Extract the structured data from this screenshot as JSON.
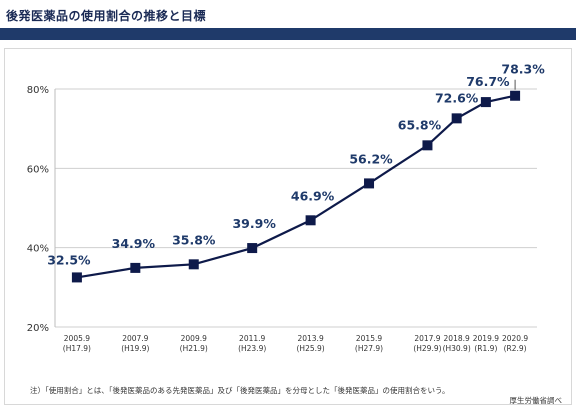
{
  "page": {
    "title": "後発医薬品の使用割合の推移と目標",
    "footnote": "注）「使用割合」とは、「後発医薬品のある先発医薬品」及び「後発医薬品」を分母とした「後発医薬品」の使用割合をいう。",
    "source": "厚生労働省調べ"
  },
  "colors": {
    "line": "#0e1a4a",
    "marker": "#0e1a4a",
    "data_label": "#1f3a6a",
    "title_bar": "#1f3a6a"
  },
  "chart_data": {
    "type": "line",
    "title": "",
    "xlabel": "",
    "ylabel": "",
    "ylim": [
      20,
      80
    ],
    "yticks": [
      20,
      40,
      60,
      80
    ],
    "ytick_labels": [
      "20%",
      "40%",
      "60%",
      "80%"
    ],
    "grid": true,
    "x_labels": [
      "2005.9",
      "2007.9",
      "2009.9",
      "2011.9",
      "2013.9",
      "2015.9",
      "2017.9",
      "2018.9",
      "2019.9",
      "2020.9"
    ],
    "x_sublabels": [
      "(H17.9)",
      "(H19.9)",
      "(H21.9)",
      "(H23.9)",
      "(H25.9)",
      "(H27.9)",
      "(H29.9)",
      "(H30.9)",
      "(R1.9)",
      "(R2.9)"
    ],
    "x_year_values": [
      2005.75,
      2007.75,
      2009.75,
      2011.75,
      2013.75,
      2015.75,
      2017.75,
      2018.75,
      2019.75,
      2020.75
    ],
    "values": [
      32.5,
      34.9,
      35.8,
      39.9,
      46.9,
      56.2,
      65.8,
      72.6,
      76.7,
      78.3
    ],
    "data_labels": [
      "32.5%",
      "34.9%",
      "35.8%",
      "39.9%",
      "46.9%",
      "56.2%",
      "65.8%",
      "72.6%",
      "76.7%",
      "78.3%"
    ]
  }
}
